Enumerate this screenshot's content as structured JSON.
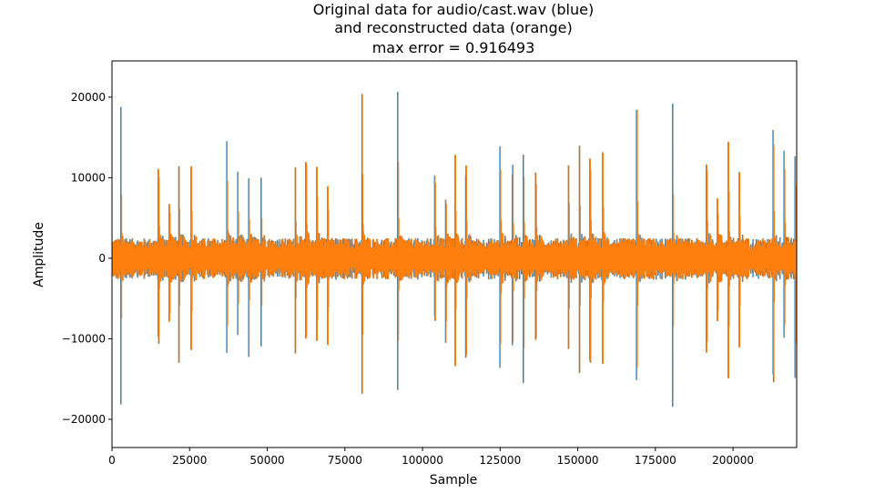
{
  "chart_data": {
    "type": "line",
    "title_lines": [
      "Original data for audio/cast.wav (blue)",
      "and reconstructed data (orange)",
      "max error = 0.916493"
    ],
    "xlabel": "Sample",
    "ylabel": "Amplitude",
    "xlim": [
      0,
      220500
    ],
    "ylim": [
      -23500,
      24500
    ],
    "x_ticks": [
      0,
      25000,
      50000,
      75000,
      100000,
      125000,
      150000,
      175000,
      200000
    ],
    "x_tick_labels": [
      "0",
      "25000",
      "50000",
      "75000",
      "100000",
      "125000",
      "150000",
      "175000",
      "200000"
    ],
    "y_ticks": [
      -20000,
      -10000,
      0,
      10000,
      20000
    ],
    "y_tick_labels": [
      "−20000",
      "−10000",
      "0",
      "10000",
      "20000"
    ],
    "grid": false,
    "series": [
      {
        "color": "#1f77b4"
      },
      {
        "color": "#ff7f0e"
      }
    ],
    "transients": [
      {
        "x": 2800,
        "high": 20500,
        "low": -18500
      },
      {
        "x": 15000,
        "high": 11300,
        "low": -11000
      },
      {
        "x": 18500,
        "high": 7300,
        "low": -8500
      },
      {
        "x": 21500,
        "high": 13200,
        "low": -13000
      },
      {
        "x": 25500,
        "high": 12000,
        "low": -12500
      },
      {
        "x": 37000,
        "high": 15000,
        "low": -13500
      },
      {
        "x": 40500,
        "high": 10800,
        "low": -11000
      },
      {
        "x": 44000,
        "high": 11000,
        "low": -13500
      },
      {
        "x": 48000,
        "high": 11000,
        "low": -12500
      },
      {
        "x": 59000,
        "high": 12000,
        "low": -13000
      },
      {
        "x": 62500,
        "high": 13000,
        "low": -11000
      },
      {
        "x": 66000,
        "high": 11500,
        "low": -10500
      },
      {
        "x": 69500,
        "high": 10200,
        "low": -11000
      },
      {
        "x": 80500,
        "high": 22000,
        "low": -19000
      },
      {
        "x": 92000,
        "high": 21200,
        "low": -19000
      },
      {
        "x": 104000,
        "high": 10400,
        "low": -8000
      },
      {
        "x": 107500,
        "high": 8300,
        "low": -11000
      },
      {
        "x": 110500,
        "high": 14000,
        "low": -15000
      },
      {
        "x": 114000,
        "high": 11700,
        "low": -13000
      },
      {
        "x": 125000,
        "high": 14700,
        "low": -14000
      },
      {
        "x": 129000,
        "high": 12000,
        "low": -12000
      },
      {
        "x": 132500,
        "high": 14800,
        "low": -16000
      },
      {
        "x": 136500,
        "high": 11000,
        "low": -11000
      },
      {
        "x": 147000,
        "high": 13300,
        "low": -11500
      },
      {
        "x": 150500,
        "high": 14800,
        "low": -14500
      },
      {
        "x": 154000,
        "high": 13500,
        "low": -14000
      },
      {
        "x": 158000,
        "high": 14800,
        "low": -13500
      },
      {
        "x": 169000,
        "high": 20500,
        "low": -17000
      },
      {
        "x": 180500,
        "high": 20500,
        "low": -21000
      },
      {
        "x": 191500,
        "high": 13300,
        "low": -12500
      },
      {
        "x": 195000,
        "high": 8200,
        "low": -9000
      },
      {
        "x": 198500,
        "high": 14800,
        "low": -16500
      },
      {
        "x": 202000,
        "high": 10800,
        "low": -12000
      },
      {
        "x": 213000,
        "high": 16200,
        "low": -15500
      },
      {
        "x": 216500,
        "high": 14500,
        "low": -11500
      },
      {
        "x": 220000,
        "high": 14700,
        "low": -16500
      }
    ],
    "noise_amplitude_typical": 2500
  }
}
